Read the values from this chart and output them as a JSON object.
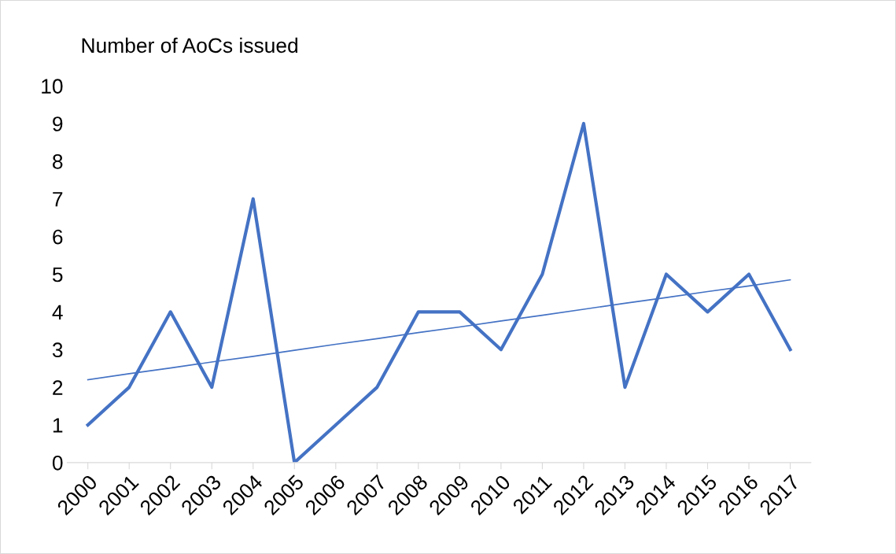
{
  "chart_data": {
    "type": "line",
    "title": "Number of AoCs issued",
    "categories": [
      "2000",
      "2001",
      "2002",
      "2003",
      "2004",
      "2005",
      "2006",
      "2007",
      "2008",
      "2009",
      "2010",
      "2011",
      "2012",
      "2013",
      "2014",
      "2015",
      "2016",
      "2017"
    ],
    "series": [
      {
        "color": "#4472c4",
        "values": [
          1,
          2,
          4,
          2,
          7,
          0,
          1,
          2,
          4,
          4,
          3,
          5,
          9,
          2,
          5,
          4,
          5,
          3
        ]
      },
      {
        "type": "line",
        "color": "#4472c4",
        "values": [
          2.2,
          2.36,
          2.51,
          2.67,
          2.82,
          2.98,
          3.14,
          3.29,
          3.45,
          3.6,
          3.76,
          3.91,
          4.07,
          4.23,
          4.38,
          4.54,
          4.69,
          4.85
        ]
      }
    ],
    "ylim": [
      0,
      10
    ],
    "yticks": [
      0,
      1,
      2,
      3,
      4,
      5,
      6,
      7,
      8,
      9,
      10
    ],
    "grid": false,
    "legend": false,
    "marker": "none",
    "line_style": "solid"
  }
}
